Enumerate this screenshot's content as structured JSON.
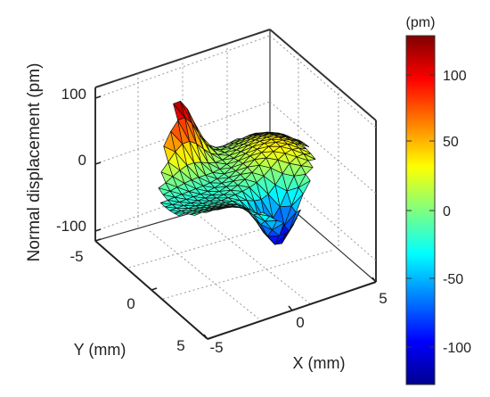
{
  "chart_data": {
    "type": "surface",
    "xlabel": "X (mm)",
    "ylabel": "Y (mm)",
    "zlabel": "Normal displacement (pm)",
    "x_ticks": [
      "-5",
      "0",
      "5"
    ],
    "y_ticks": [
      "-5",
      "0",
      "5"
    ],
    "z_ticks": [
      "100",
      "0",
      "-100"
    ],
    "xlim": [
      -5,
      5
    ],
    "ylim": [
      -5,
      5
    ],
    "zlim": [
      -130,
      130
    ],
    "grid": true,
    "colormap": "jet",
    "colorbar": {
      "label": "(pm)",
      "ticks": [
        "100",
        "50",
        "0",
        "-50",
        "-100"
      ],
      "range": [
        -125,
        125
      ]
    },
    "peaks": [
      {
        "x": -1.5,
        "y": -3.3,
        "z": 120
      },
      {
        "x": 1.3,
        "y": 2.5,
        "z": -115
      }
    ]
  }
}
